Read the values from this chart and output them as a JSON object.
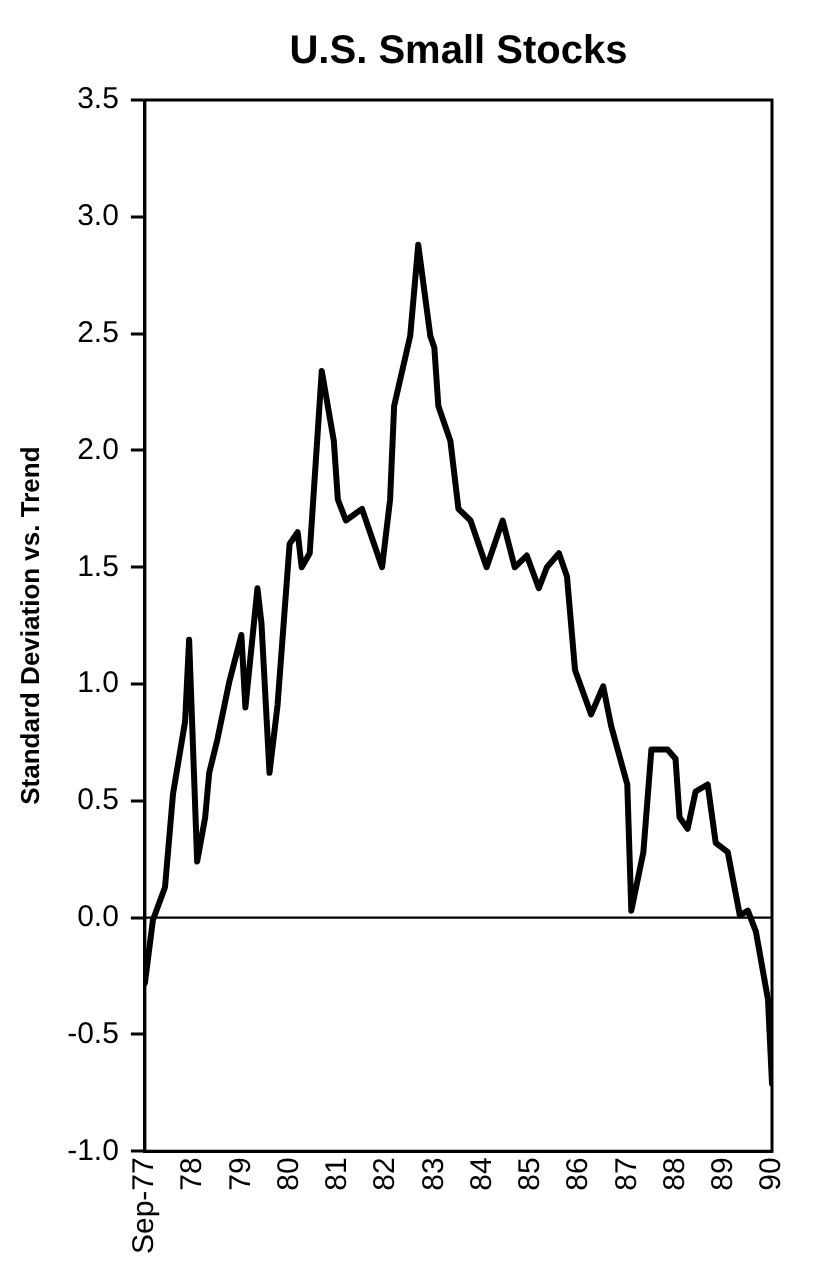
{
  "chart_data": {
    "type": "line",
    "title": "U.S. Small Stocks",
    "ylabel": "Standard Deviation vs. Trend",
    "x": [
      "1977-09",
      "1977-11",
      "1978-02",
      "1978-04",
      "1978-07",
      "1978-08",
      "1978-10",
      "1978-12",
      "1979-01",
      "1979-03",
      "1979-06",
      "1979-09",
      "1979-10",
      "1980-01",
      "1980-02",
      "1980-04",
      "1980-06",
      "1980-09",
      "1980-11",
      "1980-12",
      "1981-02",
      "1981-05",
      "1981-08",
      "1981-09",
      "1981-11",
      "1982-03",
      "1982-05",
      "1982-08",
      "1982-10",
      "1982-11",
      "1983-03",
      "1983-05",
      "1983-08",
      "1983-09",
      "1983-10",
      "1984-01",
      "1984-03",
      "1984-06",
      "1984-10",
      "1985-02",
      "1985-05",
      "1985-08",
      "1985-11",
      "1986-01",
      "1986-04",
      "1986-06",
      "1986-08",
      "1986-12",
      "1987-03",
      "1987-05",
      "1987-09",
      "1987-10",
      "1988-01",
      "1988-03",
      "1988-07",
      "1988-09",
      "1988-10",
      "1988-12",
      "1989-02",
      "1989-05",
      "1989-07",
      "1989-10",
      "1990-01",
      "1990-03",
      "1990-05",
      "1990-08",
      "1990-09"
    ],
    "series": [
      {
        "color": "#000000",
        "values": [
          -0.28,
          -0.01,
          0.13,
          0.53,
          0.84,
          1.19,
          0.24,
          0.43,
          0.62,
          0.76,
          1.01,
          1.21,
          0.9,
          1.41,
          1.26,
          0.62,
          0.91,
          1.6,
          1.65,
          1.5,
          1.56,
          2.34,
          2.04,
          1.79,
          1.7,
          1.75,
          1.65,
          1.5,
          1.79,
          2.19,
          2.49,
          2.88,
          2.49,
          2.44,
          2.19,
          2.04,
          1.75,
          1.7,
          1.5,
          1.7,
          1.5,
          1.55,
          1.41,
          1.5,
          1.56,
          1.46,
          1.06,
          0.87,
          0.99,
          0.82,
          0.57,
          0.03,
          0.28,
          0.72,
          0.72,
          0.68,
          0.43,
          0.38,
          0.54,
          0.57,
          0.32,
          0.28,
          0.01,
          0.03,
          -0.06,
          -0.35,
          -0.71
        ]
      }
    ],
    "xlim": [
      "1977-09",
      "1990-09"
    ],
    "xticks": [
      {
        "value": "1977-09",
        "label": "Sep-77"
      },
      {
        "value": "1978-09",
        "label": "78"
      },
      {
        "value": "1979-09",
        "label": "79"
      },
      {
        "value": "1980-09",
        "label": "80"
      },
      {
        "value": "1981-09",
        "label": "81"
      },
      {
        "value": "1982-09",
        "label": "82"
      },
      {
        "value": "1983-09",
        "label": "83"
      },
      {
        "value": "1984-09",
        "label": "84"
      },
      {
        "value": "1985-09",
        "label": "85"
      },
      {
        "value": "1986-09",
        "label": "86"
      },
      {
        "value": "1987-09",
        "label": "87"
      },
      {
        "value": "1988-09",
        "label": "88"
      },
      {
        "value": "1989-09",
        "label": "89"
      },
      {
        "value": "1990-09",
        "label": "90"
      }
    ],
    "ylim": [
      -1,
      3.5
    ],
    "yticks": [
      {
        "value": -1,
        "label": "-1.0"
      },
      -0.5,
      {
        "value": 0,
        "label": "0.0"
      },
      0.5,
      {
        "value": 1,
        "label": "1.0"
      },
      1.5,
      {
        "value": 2,
        "label": "2.0"
      },
      2.5,
      {
        "value": 3,
        "label": "3.0"
      },
      3.5
    ],
    "ref_lines": [
      {
        "axis": "y",
        "value": 0,
        "color": "#000000"
      }
    ],
    "grid": false,
    "legend": false,
    "marker": "none",
    "line_style": "solid"
  }
}
